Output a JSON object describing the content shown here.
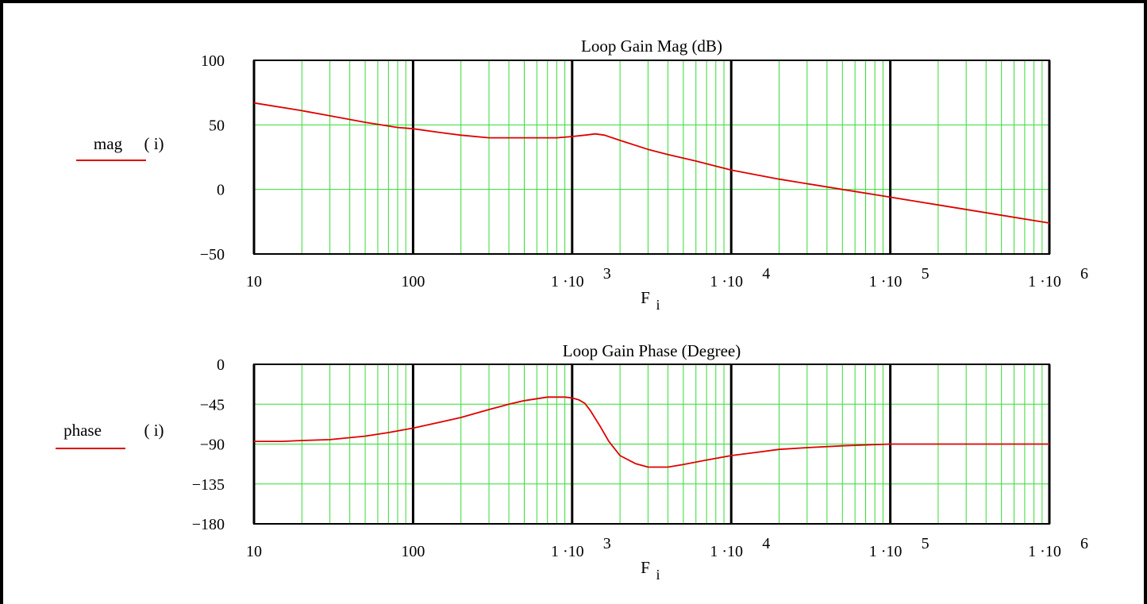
{
  "chart_data": [
    {
      "type": "line",
      "title": "Loop Gain Mag (dB)",
      "ylabel_name": "mag",
      "ylabel_arg": "( i)",
      "xlabel_base": "F",
      "xlabel_sub": "i",
      "x_scale": "log",
      "xlim": [
        10,
        1000000
      ],
      "ylim": [
        -50,
        100
      ],
      "y_ticks": [
        "100",
        "50",
        "0",
        "−50"
      ],
      "y_tick_values": [
        100,
        50,
        0,
        -50
      ],
      "x_ticks": [
        {
          "value": 10,
          "main": "10",
          "exp": ""
        },
        {
          "value": 100,
          "main": "100",
          "exp": ""
        },
        {
          "value": 1000,
          "main": "1 ·10",
          "exp": "3"
        },
        {
          "value": 10000,
          "main": "1 ·10",
          "exp": "4"
        },
        {
          "value": 100000,
          "main": "1 ·10",
          "exp": "5"
        },
        {
          "value": 1000000,
          "main": "1 ·10",
          "exp": "6"
        }
      ],
      "grid": true,
      "series_color": "#e00000",
      "grid_color": "#33dd33",
      "series": [
        {
          "x": [
            10,
            20,
            30,
            50,
            80,
            100,
            150,
            200,
            300,
            500,
            800,
            1000,
            1200,
            1400,
            1600,
            2000,
            3000,
            4000,
            6000,
            10000,
            20000,
            50000,
            100000,
            200000,
            500000,
            1000000
          ],
          "values": [
            67,
            61,
            57,
            52,
            48,
            47,
            44,
            42,
            40,
            40,
            40,
            41,
            42,
            43,
            42,
            38,
            31,
            27,
            22,
            15,
            8,
            0,
            -6,
            -12,
            -20,
            -26
          ]
        }
      ]
    },
    {
      "type": "line",
      "title": "Loop Gain Phase (Degree)",
      "ylabel_name": "phase",
      "ylabel_arg": "( i)",
      "xlabel_base": "F",
      "xlabel_sub": "i",
      "x_scale": "log",
      "xlim": [
        10,
        1000000
      ],
      "ylim": [
        -180,
        0
      ],
      "y_ticks": [
        "0",
        "−45",
        "−90",
        "−135",
        "−180"
      ],
      "y_tick_values": [
        0,
        -45,
        -90,
        -135,
        -180
      ],
      "x_ticks": [
        {
          "value": 10,
          "main": "10",
          "exp": ""
        },
        {
          "value": 100,
          "main": "100",
          "exp": ""
        },
        {
          "value": 1000,
          "main": "1 ·10",
          "exp": "3"
        },
        {
          "value": 10000,
          "main": "1 ·10",
          "exp": "4"
        },
        {
          "value": 100000,
          "main": "1 ·10",
          "exp": "5"
        },
        {
          "value": 1000000,
          "main": "1 ·10",
          "exp": "6"
        }
      ],
      "grid": true,
      "series_color": "#e00000",
      "grid_color": "#33dd33",
      "series": [
        {
          "x": [
            10,
            15,
            20,
            30,
            50,
            70,
            100,
            150,
            200,
            300,
            400,
            500,
            700,
            800,
            900,
            1000,
            1100,
            1200,
            1300,
            1500,
            1700,
            2000,
            2500,
            3000,
            4000,
            5000,
            7000,
            10000,
            15000,
            20000,
            30000,
            50000,
            70000,
            100000,
            200000,
            500000,
            1000000
          ],
          "values": [
            -87,
            -87,
            -86,
            -85,
            -81,
            -77,
            -72,
            -65,
            -60,
            -51,
            -45,
            -41,
            -37,
            -37,
            -37,
            -38,
            -40,
            -44,
            -52,
            -70,
            -87,
            -103,
            -112,
            -116,
            -116,
            -113,
            -108,
            -103,
            -99,
            -96,
            -94,
            -92,
            -91,
            -90,
            -90,
            -90,
            -90
          ]
        }
      ]
    }
  ]
}
